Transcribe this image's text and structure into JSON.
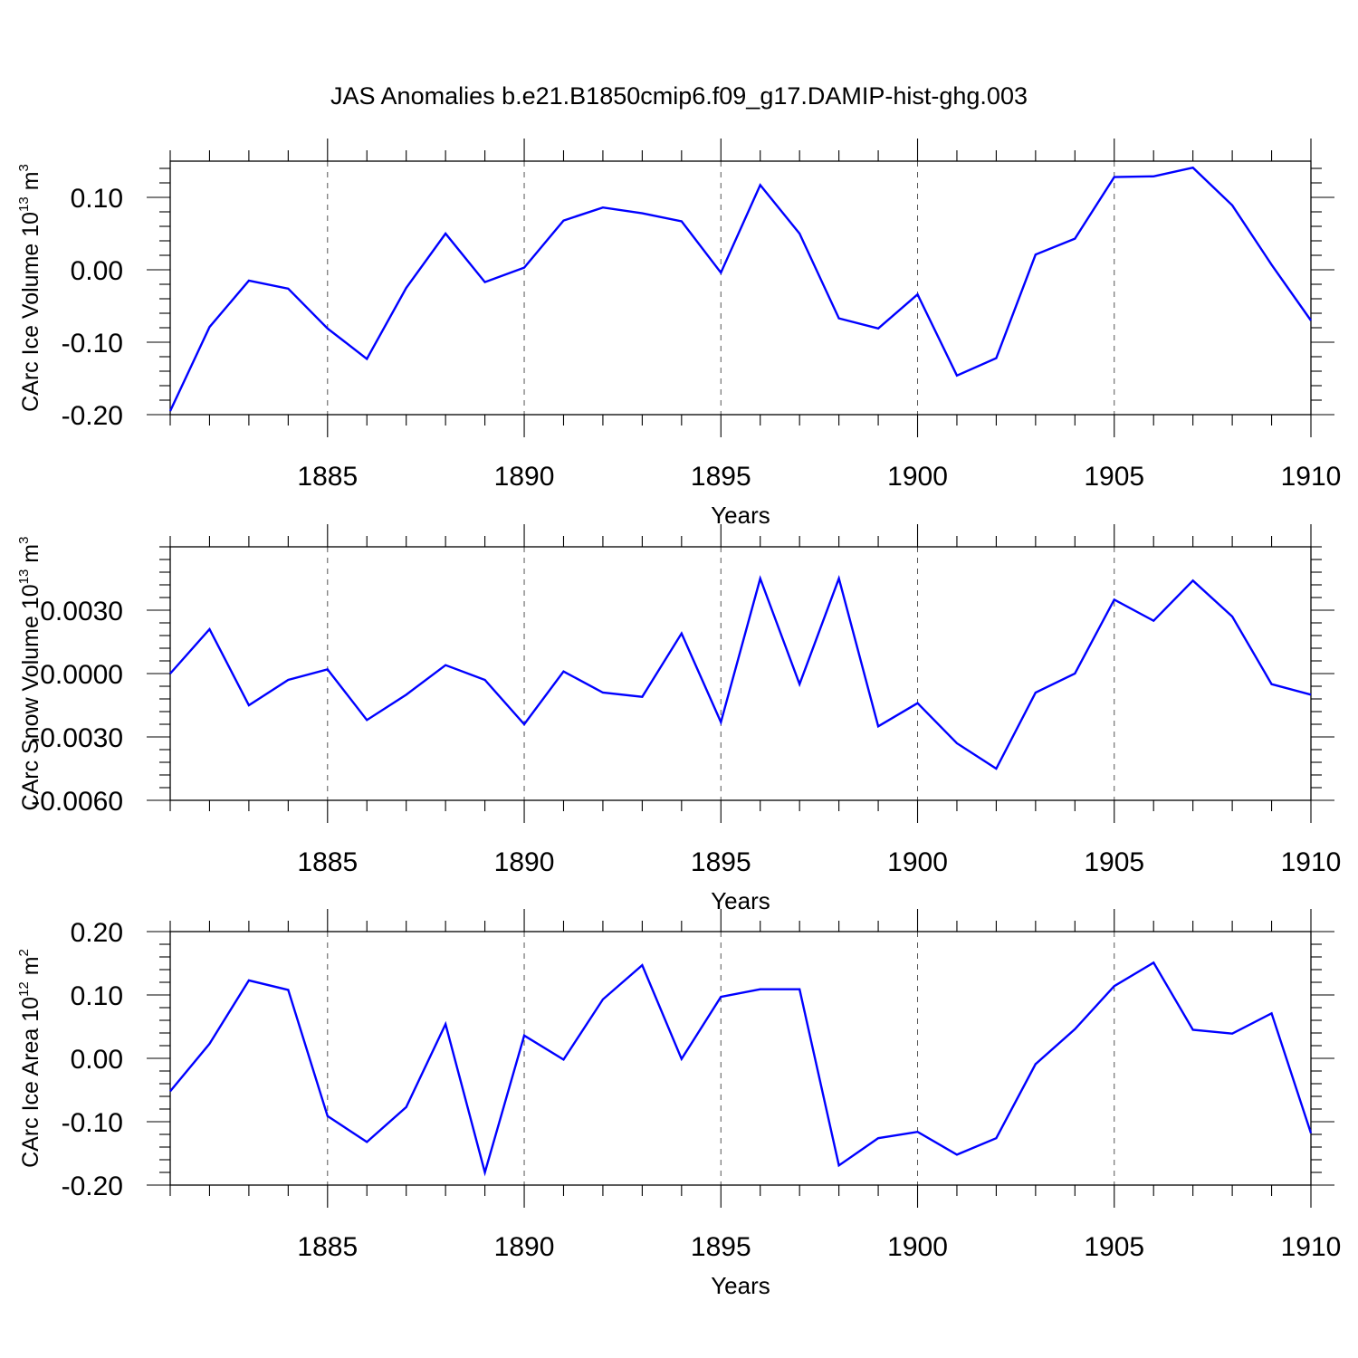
{
  "figure_title": "JAS Anomalies b.e21.B1850cmip6.f09_g17.DAMIP-hist-ghg.003",
  "chart_data": [
    {
      "type": "line",
      "ylabel": "CArc Ice Volume 10",
      "ylabel_exp": "13",
      "ylabel_unit": " m",
      "ylabel_unit_exp": "3",
      "xlabel": "Years",
      "xlim": [
        1881,
        1910
      ],
      "ylim": [
        -0.2,
        0.15
      ],
      "yticks": [
        -0.2,
        -0.1,
        0.0,
        0.1
      ],
      "ytick_labels": [
        "-0.20",
        "-0.10",
        "0.00",
        "0.10"
      ],
      "xticks": [
        1885,
        1890,
        1895,
        1900,
        1905,
        1910
      ],
      "xtick_labels": [
        "1885",
        "1890",
        "1895",
        "1900",
        "1905",
        "1910"
      ],
      "grid_x": [
        1885,
        1890,
        1895,
        1900,
        1905
      ],
      "series": [
        {
          "name": "CArc Ice Volume",
          "color": "#0000ff",
          "x": [
            1881,
            1882,
            1883,
            1884,
            1885,
            1886,
            1887,
            1888,
            1889,
            1890,
            1891,
            1892,
            1893,
            1894,
            1895,
            1896,
            1897,
            1898,
            1899,
            1900,
            1901,
            1902,
            1903,
            1904,
            1905,
            1906,
            1907,
            1908,
            1909,
            1910
          ],
          "values": [
            -0.195,
            -0.079,
            -0.015,
            -0.026,
            -0.081,
            -0.123,
            -0.025,
            0.05,
            -0.017,
            0.003,
            0.068,
            0.086,
            0.078,
            0.067,
            -0.004,
            0.117,
            0.05,
            -0.067,
            -0.081,
            -0.034,
            -0.146,
            -0.122,
            0.021,
            0.043,
            0.128,
            0.129,
            0.141,
            0.089,
            0.007,
            -0.07
          ]
        }
      ]
    },
    {
      "type": "line",
      "ylabel": "CArc Snow Volume 10",
      "ylabel_exp": "13",
      "ylabel_unit": " m",
      "ylabel_unit_exp": "3",
      "xlabel": "Years",
      "xlim": [
        1881,
        1910
      ],
      "ylim": [
        -0.006,
        0.006
      ],
      "yticks": [
        -0.006,
        -0.003,
        0.0,
        0.003
      ],
      "ytick_labels": [
        "-0.0060",
        "-0.0030",
        "0.0000",
        "0.0030"
      ],
      "xticks": [
        1885,
        1890,
        1895,
        1900,
        1905,
        1910
      ],
      "xtick_labels": [
        "1885",
        "1890",
        "1895",
        "1900",
        "1905",
        "1910"
      ],
      "grid_x": [
        1885,
        1890,
        1895,
        1900,
        1905
      ],
      "series": [
        {
          "name": "CArc Snow Volume",
          "color": "#0000ff",
          "x": [
            1881,
            1882,
            1883,
            1884,
            1885,
            1886,
            1887,
            1888,
            1889,
            1890,
            1891,
            1892,
            1893,
            1894,
            1895,
            1896,
            1897,
            1898,
            1899,
            1900,
            1901,
            1902,
            1903,
            1904,
            1905,
            1906,
            1907,
            1908,
            1909,
            1910
          ],
          "values": [
            0.0,
            0.0021,
            -0.0015,
            -0.0003,
            0.0002,
            -0.0022,
            -0.001,
            0.0004,
            -0.0003,
            -0.0024,
            0.0001,
            -0.0009,
            -0.0011,
            0.0019,
            -0.0023,
            0.0045,
            -0.0005,
            0.0045,
            -0.0025,
            -0.0014,
            -0.0033,
            -0.0045,
            -0.0009,
            0.0,
            0.0035,
            0.0025,
            0.0044,
            0.0027,
            -0.0005,
            -0.001
          ]
        }
      ]
    },
    {
      "type": "line",
      "ylabel": "CArc Ice Area 10",
      "ylabel_exp": "12",
      "ylabel_unit": " m",
      "ylabel_unit_exp": "2",
      "xlabel": "Years",
      "xlim": [
        1881,
        1910
      ],
      "ylim": [
        -0.2,
        0.2
      ],
      "yticks": [
        -0.2,
        -0.1,
        0.0,
        0.1,
        0.2
      ],
      "ytick_labels": [
        "-0.20",
        "-0.10",
        "0.00",
        "0.10",
        "0.20"
      ],
      "xticks": [
        1885,
        1890,
        1895,
        1900,
        1905,
        1910
      ],
      "xtick_labels": [
        "1885",
        "1890",
        "1895",
        "1900",
        "1905",
        "1910"
      ],
      "grid_x": [
        1885,
        1890,
        1895,
        1900,
        1905
      ],
      "series": [
        {
          "name": "CArc Ice Area",
          "color": "#0000ff",
          "x": [
            1881,
            1882,
            1883,
            1884,
            1885,
            1886,
            1887,
            1888,
            1889,
            1890,
            1891,
            1892,
            1893,
            1894,
            1895,
            1896,
            1897,
            1898,
            1899,
            1900,
            1901,
            1902,
            1903,
            1904,
            1905,
            1906,
            1907,
            1908,
            1909,
            1910
          ],
          "values": [
            -0.052,
            0.023,
            0.123,
            0.108,
            -0.091,
            -0.132,
            -0.077,
            0.054,
            -0.18,
            0.036,
            -0.002,
            0.093,
            0.147,
            -0.001,
            0.097,
            0.109,
            0.109,
            -0.169,
            -0.126,
            -0.116,
            -0.152,
            -0.126,
            -0.009,
            0.046,
            0.114,
            0.151,
            0.045,
            0.039,
            0.071,
            -0.118
          ]
        }
      ]
    }
  ]
}
